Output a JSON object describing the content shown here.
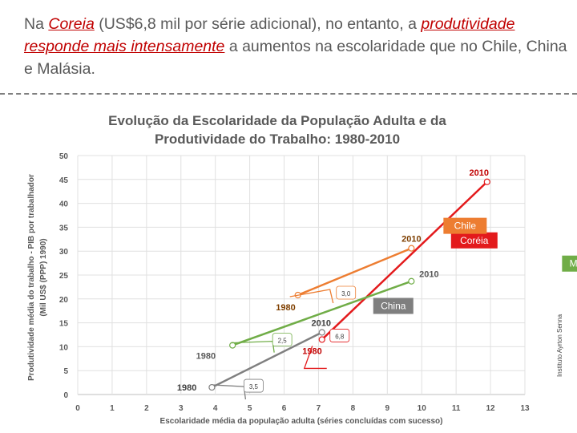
{
  "headline": {
    "p1": "Na ",
    "coreia": "Coreia",
    "p2": " (US$6,8 mil por série adicional), no entanto, a ",
    "produtividade": "produtividade responde mais intensamente",
    "p3": " a aumentos na escolaridade que no Chile, China e Malásia."
  },
  "credit": "Instituto Ayrton Senna",
  "chart_data": {
    "type": "line",
    "title": [
      "Evolução da Escolaridade da População Adulta e da",
      "Produtividade do Trabalho: 1980-2010"
    ],
    "xlabel": "Escolaridade média da população adulta (séries concluídas com sucesso)",
    "ylabel": [
      "Produtividade média do trabalho - PIB por trabalhador",
      "(Mil US$ (PPP) 1990)"
    ],
    "xlim": [
      0,
      13
    ],
    "ylim": [
      0,
      50
    ],
    "xticks": [
      0,
      1,
      2,
      3,
      4,
      5,
      6,
      7,
      8,
      9,
      10,
      11,
      12,
      13
    ],
    "yticks": [
      0,
      5,
      10,
      15,
      20,
      25,
      30,
      35,
      40,
      45,
      50
    ],
    "grid": true,
    "series": [
      {
        "name": "Coréia",
        "color": "#e31a1c",
        "points": [
          [
            7.1,
            11.5
          ],
          [
            11.9,
            44.5
          ]
        ],
        "labels": [
          "1980",
          "2010"
        ],
        "slope_label": "6,8"
      },
      {
        "name": "Chile",
        "color": "#ed7d31",
        "points": [
          [
            6.4,
            20.8
          ],
          [
            9.7,
            30.6
          ]
        ],
        "labels": [
          "1980",
          "2010"
        ],
        "slope_label": "3,0"
      },
      {
        "name": "Malásia",
        "color": "#70ad47",
        "points": [
          [
            4.5,
            10.3
          ],
          [
            9.7,
            23.7
          ]
        ],
        "labels": [
          "1980",
          "2010"
        ],
        "slope_label": "2,5"
      },
      {
        "name": "China",
        "color": "#7f7f7f",
        "points": [
          [
            3.9,
            1.5
          ],
          [
            7.1,
            13.0
          ]
        ],
        "labels": [
          "1980",
          "2010"
        ],
        "slope_label": "3,5"
      }
    ]
  }
}
